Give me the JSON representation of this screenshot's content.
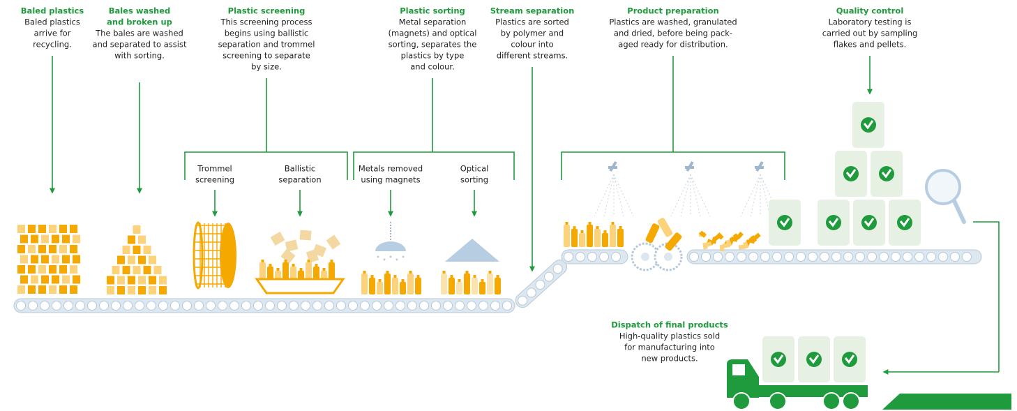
{
  "steps": [
    {
      "title": "Baled plastics",
      "lines": [
        "Baled plastics",
        "arrive for",
        "recycling."
      ]
    },
    {
      "title": "Bales washed",
      "title2": "and broken up",
      "lines": [
        "The bales are washed",
        "and separated to assist",
        "with sorting."
      ]
    },
    {
      "title": "Plastic screening",
      "lines": [
        "This screening process",
        "begins using ballistic",
        "separation and trommel",
        "screening to separate",
        "by size."
      ]
    },
    {
      "title": "Plastic sorting",
      "lines": [
        "Metal separation",
        "(magnets) and optical",
        "sorting, separates the",
        "plastics by type",
        "and colour."
      ]
    },
    {
      "title": "Stream separation",
      "lines": [
        "Plastics are sorted",
        "by polymer and",
        "colour into",
        "different streams."
      ]
    },
    {
      "title": "Product preparation",
      "lines": [
        "Plastics are washed, granulated",
        "and dried, before being pack-",
        "aged ready for distribution."
      ]
    },
    {
      "title": "Quality control",
      "lines": [
        "Laboratory testing is",
        "carried out by sampling",
        "flakes and pellets."
      ]
    }
  ],
  "sub_labels": [
    {
      "lines": [
        "Trommel",
        "screening"
      ]
    },
    {
      "lines": [
        "Ballistic",
        "separation"
      ]
    },
    {
      "lines": [
        "Metals removed",
        "using magnets"
      ]
    },
    {
      "lines": [
        "Optical",
        "sorting"
      ]
    }
  ],
  "dispatch": {
    "title": "Dispatch of final products",
    "lines": [
      "High-quality plastics sold",
      "for manufacturing into",
      "new products."
    ]
  }
}
